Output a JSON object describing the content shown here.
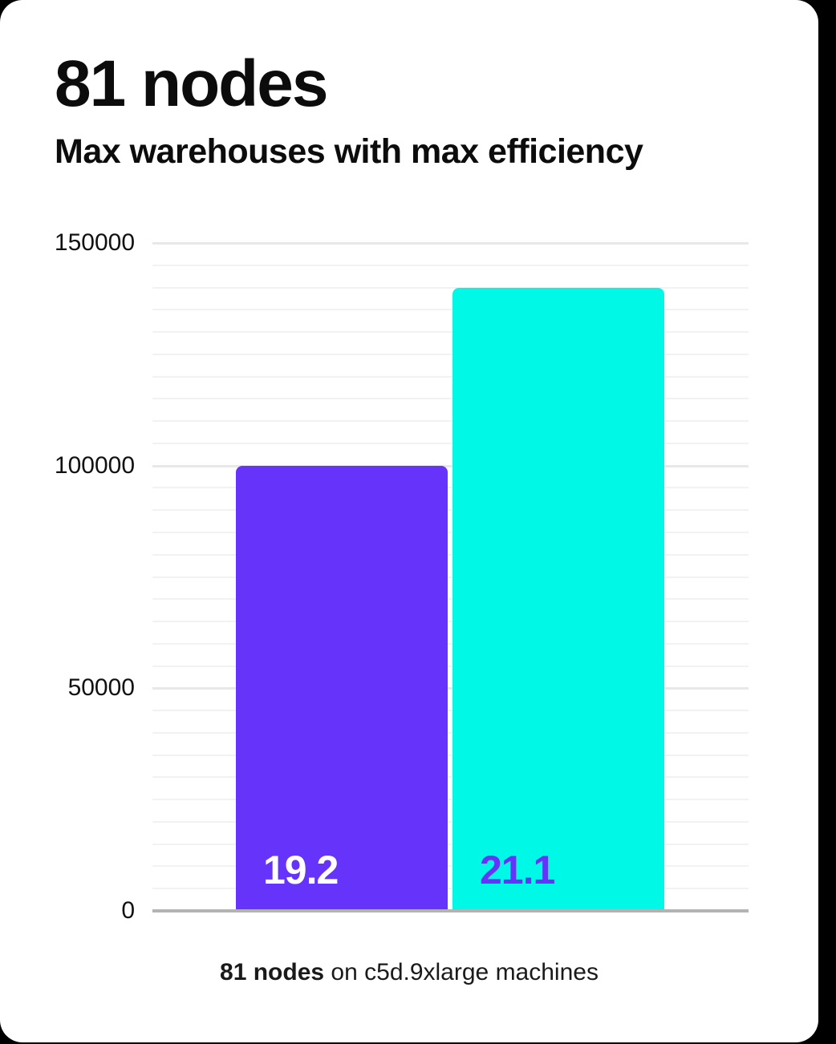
{
  "header": {
    "title": "81 nodes",
    "subtitle": "Max warehouses with max efficiency"
  },
  "caption": {
    "bold": "81 nodes",
    "rest": " on c5d.9xlarge machines"
  },
  "chart_data": {
    "type": "bar",
    "title": "81 nodes",
    "subtitle": "Max warehouses with max efficiency",
    "categories": [
      "19.2",
      "21.1"
    ],
    "values": [
      100000,
      140000
    ],
    "bar_labels": [
      "19.2",
      "21.1"
    ],
    "bar_colors": [
      "#6633fa",
      "#00f8e7"
    ],
    "bar_label_colors": [
      "#ffffff",
      "#6633fa"
    ],
    "xlabel": "",
    "ylabel": "",
    "ylim": [
      0,
      150000
    ],
    "yticks": [
      0,
      50000,
      100000,
      150000
    ],
    "ytick_labels": [
      "0",
      "50000",
      "100000",
      "150000"
    ],
    "minor_grid_step": 5000,
    "grid": true,
    "legend_position": "none",
    "caption": "81 nodes on c5d.9xlarge machines"
  },
  "colors": {
    "background": "#000000",
    "card": "#ffffff",
    "accent_purple": "#6633fa",
    "accent_cyan": "#00f8e7",
    "grid_minor": "#f2f2f2",
    "grid_major": "#e8e8e8",
    "axis_line": "#b3b3b3",
    "text": "#0c0c0c"
  }
}
